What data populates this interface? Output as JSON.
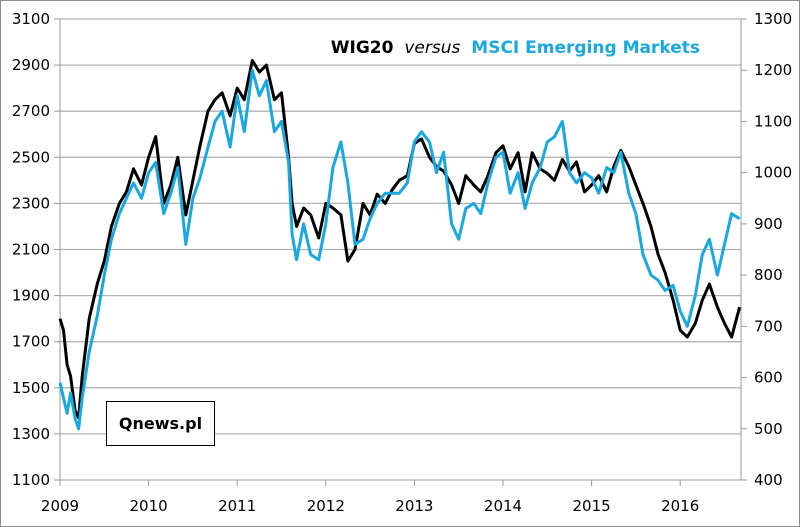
{
  "chart_data": {
    "type": "line",
    "title": {
      "part1": "WIG20",
      "part2": "versus",
      "part3": "MSCI Emerging Markets",
      "part1_color": "#000000",
      "part3_color": "#1aa8e0"
    },
    "watermark": "Qnews.pl",
    "xlabel": "",
    "ylabel_left": "",
    "ylabel_right": "",
    "x_ticks": [
      "2009",
      "2010",
      "2011",
      "2012",
      "2013",
      "2014",
      "2015",
      "2016"
    ],
    "x_range": [
      2009.0,
      2016.7
    ],
    "y_left": {
      "range": [
        1100,
        3100
      ],
      "ticks": [
        "1100",
        "1300",
        "1500",
        "1700",
        "1900",
        "2100",
        "2300",
        "2500",
        "2700",
        "2900",
        "3100"
      ]
    },
    "y_right": {
      "range": [
        400,
        1300
      ],
      "ticks": [
        "400",
        "500",
        "600",
        "700",
        "800",
        "900",
        "1000",
        "1100",
        "1200",
        "1300"
      ]
    },
    "grid": "horizontal",
    "legend": "title-colored",
    "series": [
      {
        "name": "WIG20",
        "axis": "left",
        "color": "#000000",
        "x": [
          2009.0,
          2009.04,
          2009.08,
          2009.12,
          2009.17,
          2009.21,
          2009.25,
          2009.33,
          2009.42,
          2009.5,
          2009.58,
          2009.67,
          2009.75,
          2009.83,
          2009.92,
          2010.0,
          2010.08,
          2010.17,
          2010.25,
          2010.33,
          2010.42,
          2010.5,
          2010.58,
          2010.67,
          2010.75,
          2010.83,
          2010.92,
          2011.0,
          2011.08,
          2011.17,
          2011.25,
          2011.33,
          2011.42,
          2011.5,
          2011.58,
          2011.62,
          2011.67,
          2011.75,
          2011.83,
          2011.92,
          2012.0,
          2012.08,
          2012.17,
          2012.25,
          2012.33,
          2012.42,
          2012.5,
          2012.58,
          2012.67,
          2012.75,
          2012.83,
          2012.92,
          2013.0,
          2013.08,
          2013.17,
          2013.25,
          2013.33,
          2013.42,
          2013.5,
          2013.58,
          2013.67,
          2013.75,
          2013.83,
          2013.92,
          2014.0,
          2014.08,
          2014.17,
          2014.25,
          2014.33,
          2014.42,
          2014.5,
          2014.58,
          2014.67,
          2014.75,
          2014.83,
          2014.92,
          2015.0,
          2015.08,
          2015.17,
          2015.25,
          2015.33,
          2015.42,
          2015.5,
          2015.58,
          2015.67,
          2015.75,
          2015.83,
          2015.92,
          2016.0,
          2016.08,
          2016.17,
          2016.25,
          2016.33,
          2016.42,
          2016.5,
          2016.58,
          2016.67
        ],
        "values": [
          1800,
          1750,
          1600,
          1550,
          1400,
          1370,
          1550,
          1800,
          1950,
          2050,
          2200,
          2300,
          2350,
          2450,
          2380,
          2500,
          2590,
          2300,
          2380,
          2500,
          2250,
          2400,
          2550,
          2700,
          2750,
          2780,
          2680,
          2800,
          2750,
          2920,
          2870,
          2900,
          2750,
          2780,
          2500,
          2300,
          2200,
          2280,
          2250,
          2150,
          2300,
          2280,
          2250,
          2050,
          2100,
          2300,
          2250,
          2340,
          2300,
          2360,
          2400,
          2420,
          2560,
          2580,
          2500,
          2460,
          2440,
          2380,
          2300,
          2420,
          2380,
          2350,
          2420,
          2520,
          2550,
          2450,
          2520,
          2350,
          2520,
          2450,
          2430,
          2400,
          2490,
          2440,
          2480,
          2350,
          2380,
          2420,
          2350,
          2460,
          2530,
          2460,
          2380,
          2300,
          2200,
          2080,
          2000,
          1880,
          1750,
          1720,
          1780,
          1880,
          1950,
          1850,
          1780,
          1720,
          1850
        ]
      },
      {
        "name": "MSCI Emerging Markets",
        "axis": "right",
        "color": "#1aa8e0",
        "x": [
          2009.0,
          2009.04,
          2009.08,
          2009.12,
          2009.17,
          2009.21,
          2009.25,
          2009.33,
          2009.42,
          2009.5,
          2009.58,
          2009.67,
          2009.75,
          2009.83,
          2009.92,
          2010.0,
          2010.08,
          2010.17,
          2010.25,
          2010.33,
          2010.42,
          2010.5,
          2010.58,
          2010.67,
          2010.75,
          2010.83,
          2010.92,
          2011.0,
          2011.08,
          2011.17,
          2011.25,
          2011.33,
          2011.42,
          2011.5,
          2011.58,
          2011.62,
          2011.67,
          2011.75,
          2011.83,
          2011.92,
          2012.0,
          2012.08,
          2012.17,
          2012.25,
          2012.33,
          2012.42,
          2012.5,
          2012.58,
          2012.67,
          2012.75,
          2012.83,
          2012.92,
          2013.0,
          2013.08,
          2013.17,
          2013.25,
          2013.33,
          2013.42,
          2013.5,
          2013.58,
          2013.67,
          2013.75,
          2013.83,
          2013.92,
          2014.0,
          2014.08,
          2014.17,
          2014.25,
          2014.33,
          2014.42,
          2014.5,
          2014.58,
          2014.67,
          2014.75,
          2014.83,
          2014.92,
          2015.0,
          2015.08,
          2015.17,
          2015.25,
          2015.33,
          2015.42,
          2015.5,
          2015.58,
          2015.67,
          2015.75,
          2015.83,
          2015.92,
          2016.0,
          2016.08,
          2016.17,
          2016.25,
          2016.33,
          2016.42,
          2016.5,
          2016.58,
          2016.67
        ],
        "values": [
          590,
          560,
          530,
          570,
          520,
          500,
          560,
          650,
          720,
          800,
          870,
          920,
          950,
          980,
          950,
          1000,
          1020,
          920,
          960,
          1010,
          860,
          950,
          990,
          1050,
          1100,
          1120,
          1050,
          1150,
          1080,
          1200,
          1150,
          1180,
          1080,
          1100,
          1020,
          880,
          830,
          900,
          840,
          830,
          900,
          1010,
          1060,
          980,
          860,
          870,
          910,
          940,
          960,
          960,
          960,
          980,
          1060,
          1080,
          1060,
          1000,
          1040,
          900,
          870,
          930,
          940,
          920,
          980,
          1030,
          1040,
          960,
          1000,
          930,
          980,
          1010,
          1060,
          1070,
          1100,
          1000,
          980,
          1000,
          990,
          960,
          1010,
          1000,
          1040,
          960,
          920,
          840,
          800,
          790,
          770,
          780,
          730,
          700,
          760,
          840,
          870,
          800,
          860,
          920,
          910
        ]
      }
    ]
  }
}
